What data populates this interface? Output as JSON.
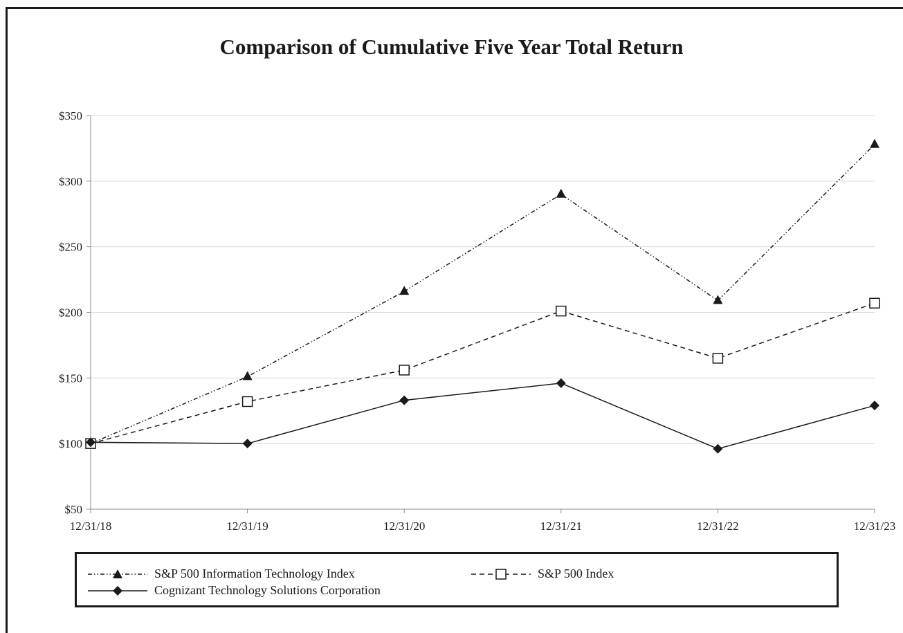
{
  "chart_data": {
    "type": "line",
    "title": "Comparison of Cumulative Five Year Total Return",
    "categories": [
      "12/31/18",
      "12/31/19",
      "12/31/20",
      "12/31/21",
      "12/31/22",
      "12/31/23"
    ],
    "y_tick_labels": [
      "$350",
      "$300",
      "$250",
      "$200",
      "$150",
      "$100",
      "$50"
    ],
    "y_ticks": [
      350,
      300,
      250,
      200,
      150,
      100,
      50
    ],
    "ylim": [
      50,
      350
    ],
    "grid": true,
    "legend_position": "bottom",
    "series": [
      {
        "name": "S&P 500 Information Technology Index",
        "marker": "triangle",
        "line_style": "dash-dot-dot",
        "values": [
          100,
          151,
          216,
          290,
          209,
          328
        ]
      },
      {
        "name": "S&P 500 Index",
        "marker": "square-open",
        "line_style": "dashed",
        "values": [
          100,
          132,
          156,
          201,
          165,
          207
        ]
      },
      {
        "name": "Cognizant Technology Solutions Corporation",
        "marker": "diamond",
        "line_style": "solid",
        "values": [
          101,
          100,
          133,
          146,
          96,
          129
        ]
      }
    ],
    "colors": {
      "line": "#1a1a1a",
      "grid": "#d9d9d9",
      "axis": "#8c8c8c"
    }
  }
}
